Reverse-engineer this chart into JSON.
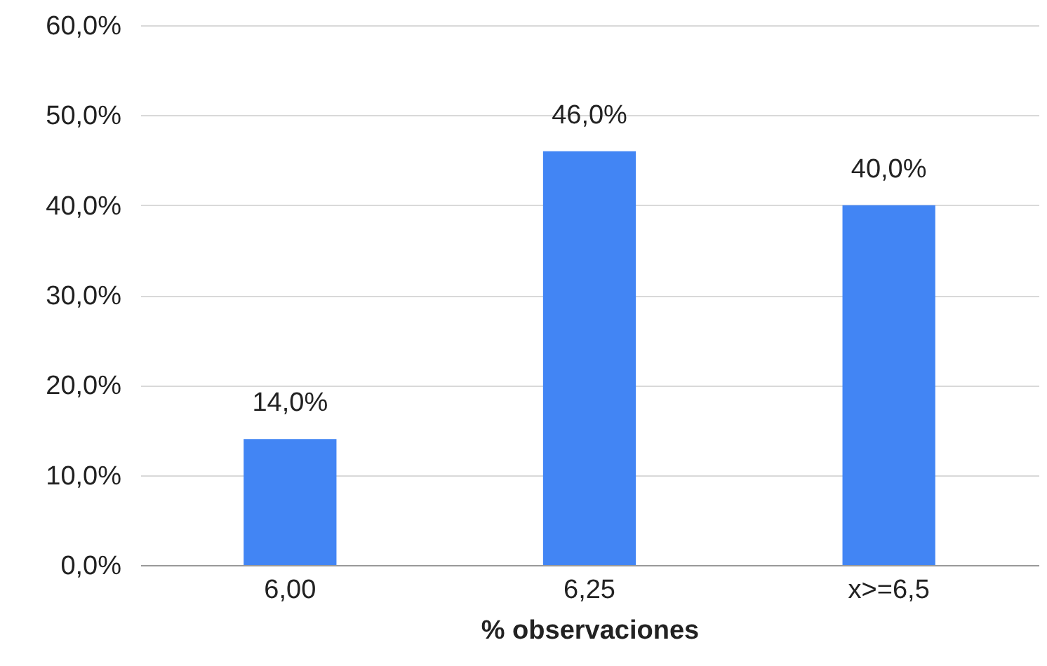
{
  "chart_data": {
    "type": "bar",
    "xlabel": "% observaciones",
    "categories": [
      "6,00",
      "6,25",
      "x>=6,5"
    ],
    "values": [
      14,
      46,
      40
    ],
    "color": "#4285f4",
    "value_labels": [
      "14,0%",
      "46,0%",
      "40,0%"
    ],
    "ylim": [
      0,
      60
    ],
    "yticks": [
      {
        "value": 0,
        "label": "0,0%"
      },
      {
        "value": 10,
        "label": "10,0%"
      },
      {
        "value": 20,
        "label": "20,0%"
      },
      {
        "value": 30,
        "label": "30,0%"
      },
      {
        "value": 40,
        "label": "40,0%"
      },
      {
        "value": 50,
        "label": "50,0%"
      },
      {
        "value": 60,
        "label": "60,0%"
      }
    ],
    "grid": "y"
  }
}
